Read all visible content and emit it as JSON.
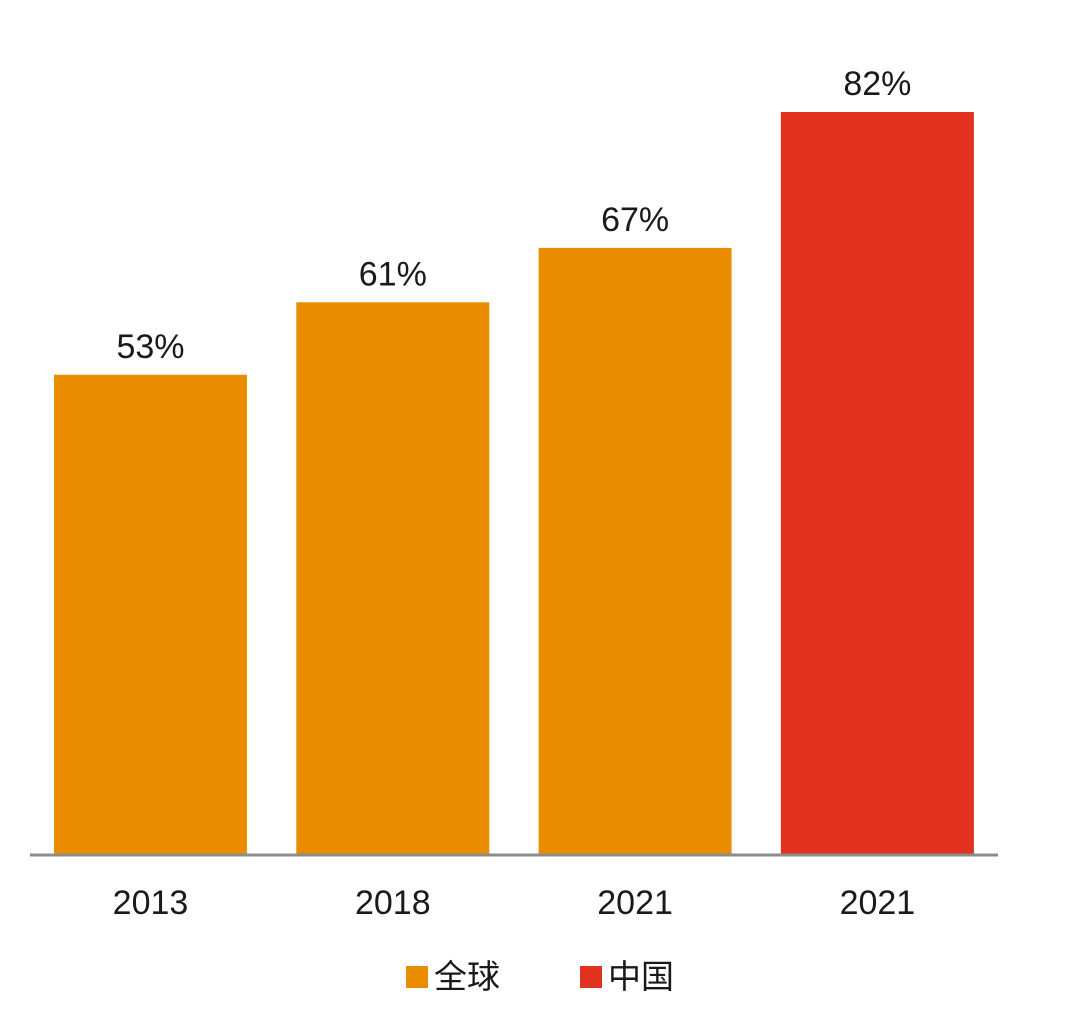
{
  "chart_data": {
    "type": "bar",
    "categories": [
      "2013",
      "2018",
      "2021",
      "2021"
    ],
    "values": [
      53,
      61,
      67,
      82
    ],
    "value_labels": [
      "53%",
      "61%",
      "67%",
      "82%"
    ],
    "bar_series": [
      "全球",
      "全球",
      "全球",
      "中国"
    ],
    "series": [
      {
        "name": "全球",
        "color": "#EA8C00"
      },
      {
        "name": "中国",
        "color": "#E0321F"
      }
    ],
    "title": "",
    "xlabel": "",
    "ylabel": "",
    "ylim": [
      0,
      87
    ],
    "grid": false,
    "y_axis_visible": false,
    "legend_position": "bottom-center",
    "axis_color": "#8c8c8c"
  }
}
